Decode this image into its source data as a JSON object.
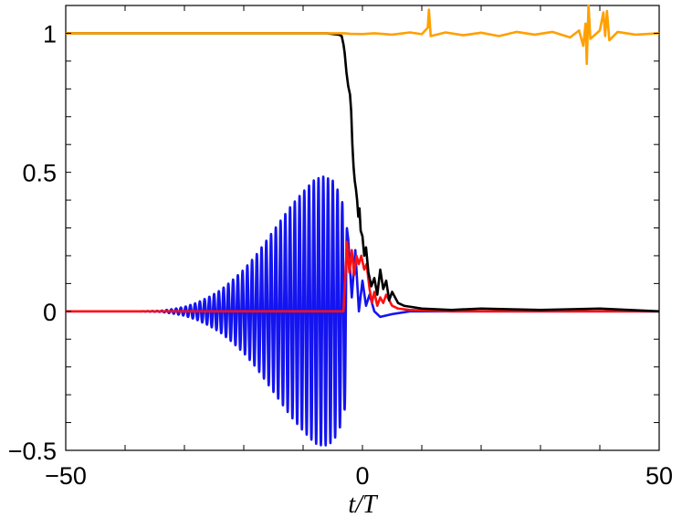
{
  "chart_data": {
    "type": "line",
    "title": "",
    "xlabel": "t/T",
    "ylabel": "",
    "xlim": [
      -50,
      50
    ],
    "ylim": [
      -0.5,
      1.1
    ],
    "x_ticks": [
      -50,
      0,
      50
    ],
    "x_tick_labels": [
      "−50",
      "0",
      "50"
    ],
    "y_ticks": [
      -0.5,
      0,
      0.5,
      1
    ],
    "y_tick_labels": [
      "−0.5",
      "0",
      "0.5",
      "1"
    ],
    "grid": false,
    "legend": "none",
    "series": [
      {
        "color": "#ffa000",
        "description": "stays at 1 until t/T≈-3, then fluctuates around 1 with spikes",
        "points": [
          [
            -50,
            1.0
          ],
          [
            -3,
            1.0
          ],
          [
            -2,
            0.998
          ],
          [
            0,
            0.997
          ],
          [
            2,
            1.0
          ],
          [
            5,
            0.995
          ],
          [
            8,
            1.003
          ],
          [
            10,
            0.997
          ],
          [
            11,
            1.02
          ],
          [
            11.2,
            1.085
          ],
          [
            11.5,
            0.99
          ],
          [
            14,
            1.003
          ],
          [
            17,
            0.993
          ],
          [
            20,
            1.002
          ],
          [
            23,
            0.99
          ],
          [
            26,
            1.005
          ],
          [
            29,
            0.995
          ],
          [
            32,
            1.005
          ],
          [
            35,
            0.985
          ],
          [
            36.5,
            1.01
          ],
          [
            37.2,
            0.955
          ],
          [
            37.6,
            1.035
          ],
          [
            37.8,
            0.89
          ],
          [
            38.1,
            1.1
          ],
          [
            38.4,
            0.98
          ],
          [
            40,
            1.01
          ],
          [
            40.6,
            1.075
          ],
          [
            40.9,
            0.99
          ],
          [
            41.2,
            1.08
          ],
          [
            41.6,
            0.975
          ],
          [
            43,
            1.005
          ],
          [
            46,
            0.995
          ],
          [
            50,
            1.0
          ]
        ]
      },
      {
        "color": "#000000",
        "description": "stays at 1, drops steeply near t/T≈-3 to about 0, noisy near 0 afterwards",
        "points": [
          [
            -50,
            1.0
          ],
          [
            -6,
            1.0
          ],
          [
            -4,
            0.995
          ],
          [
            -3.5,
            0.99
          ],
          [
            -3.2,
            0.96
          ],
          [
            -3,
            0.93
          ],
          [
            -2.7,
            0.86
          ],
          [
            -2.4,
            0.81
          ],
          [
            -2.1,
            0.78
          ],
          [
            -1.9,
            0.72
          ],
          [
            -1.7,
            0.6
          ],
          [
            -1.5,
            0.52
          ],
          [
            -1.3,
            0.47
          ],
          [
            -1.1,
            0.44
          ],
          [
            -0.9,
            0.4
          ],
          [
            -0.7,
            0.34
          ],
          [
            -0.5,
            0.37
          ],
          [
            -0.3,
            0.29
          ],
          [
            0,
            0.27
          ],
          [
            0.3,
            0.2
          ],
          [
            0.6,
            0.23
          ],
          [
            1,
            0.14
          ],
          [
            1.5,
            0.09
          ],
          [
            2,
            0.12
          ],
          [
            2.5,
            0.06
          ],
          [
            3,
            0.15
          ],
          [
            3.5,
            0.08
          ],
          [
            4,
            0.11
          ],
          [
            4.5,
            0.04
          ],
          [
            5,
            0.07
          ],
          [
            6,
            0.03
          ],
          [
            7,
            0.02
          ],
          [
            10,
            0.01
          ],
          [
            15,
            0.005
          ],
          [
            20,
            0.01
          ],
          [
            30,
            0.005
          ],
          [
            40,
            0.01
          ],
          [
            50,
            0.0
          ]
        ]
      },
      {
        "color": "#ff1010",
        "description": "zero until t/T≈-3, jumps to ~0.25, oscillates and decays to 0",
        "points": [
          [
            -50,
            0.0
          ],
          [
            -4,
            0.0
          ],
          [
            -3.2,
            0.0
          ],
          [
            -2.9,
            0.12
          ],
          [
            -2.6,
            0.25
          ],
          [
            -2.2,
            0.14
          ],
          [
            -1.8,
            0.22
          ],
          [
            -1.4,
            0.13
          ],
          [
            -1,
            0.2
          ],
          [
            -0.6,
            0.17
          ],
          [
            -0.2,
            0.2
          ],
          [
            0.3,
            0.15
          ],
          [
            0.7,
            0.17
          ],
          [
            1.2,
            0.08
          ],
          [
            1.6,
            0.03
          ],
          [
            2,
            0.07
          ],
          [
            2.5,
            0.02
          ],
          [
            3,
            0.05
          ],
          [
            3.5,
            0.03
          ],
          [
            4,
            0.06
          ],
          [
            5,
            0.02
          ],
          [
            6,
            0.01
          ],
          [
            8,
            0.005
          ],
          [
            15,
            0.0
          ],
          [
            50,
            0.0
          ]
        ]
      },
      {
        "color": "#1414f0",
        "description": "oscillating wave packet growing from ~t/T=-35 to amplitude ~0.48 at t/T≈-7, cut off near t/T≈-2.5, then near 0",
        "oscillation_period": 0.8,
        "envelope": [
          [
            -50,
            0.0
          ],
          [
            -38,
            0.0
          ],
          [
            -34,
            0.002
          ],
          [
            -32,
            0.008
          ],
          [
            -30,
            0.016
          ],
          [
            -28,
            0.03
          ],
          [
            -26,
            0.05
          ],
          [
            -24,
            0.075
          ],
          [
            -22,
            0.11
          ],
          [
            -20,
            0.15
          ],
          [
            -18,
            0.2
          ],
          [
            -16,
            0.26
          ],
          [
            -14,
            0.32
          ],
          [
            -12,
            0.38
          ],
          [
            -10,
            0.43
          ],
          [
            -8,
            0.475
          ],
          [
            -6.5,
            0.485
          ],
          [
            -5,
            0.47
          ],
          [
            -4,
            0.43
          ],
          [
            -3.2,
            0.38
          ],
          [
            -2.6,
            0.3
          ]
        ],
        "tail": [
          [
            -2.4,
            0.26
          ],
          [
            -1.8,
            0.05
          ],
          [
            -1.2,
            0.22
          ],
          [
            -0.6,
            0.0
          ],
          [
            0,
            0.11
          ],
          [
            0.6,
            0.02
          ],
          [
            1.2,
            0.06
          ],
          [
            2,
            0.0
          ],
          [
            3,
            -0.02
          ],
          [
            5,
            -0.01
          ],
          [
            8,
            0.0
          ],
          [
            15,
            0.0
          ],
          [
            50,
            0.0
          ]
        ]
      }
    ]
  }
}
